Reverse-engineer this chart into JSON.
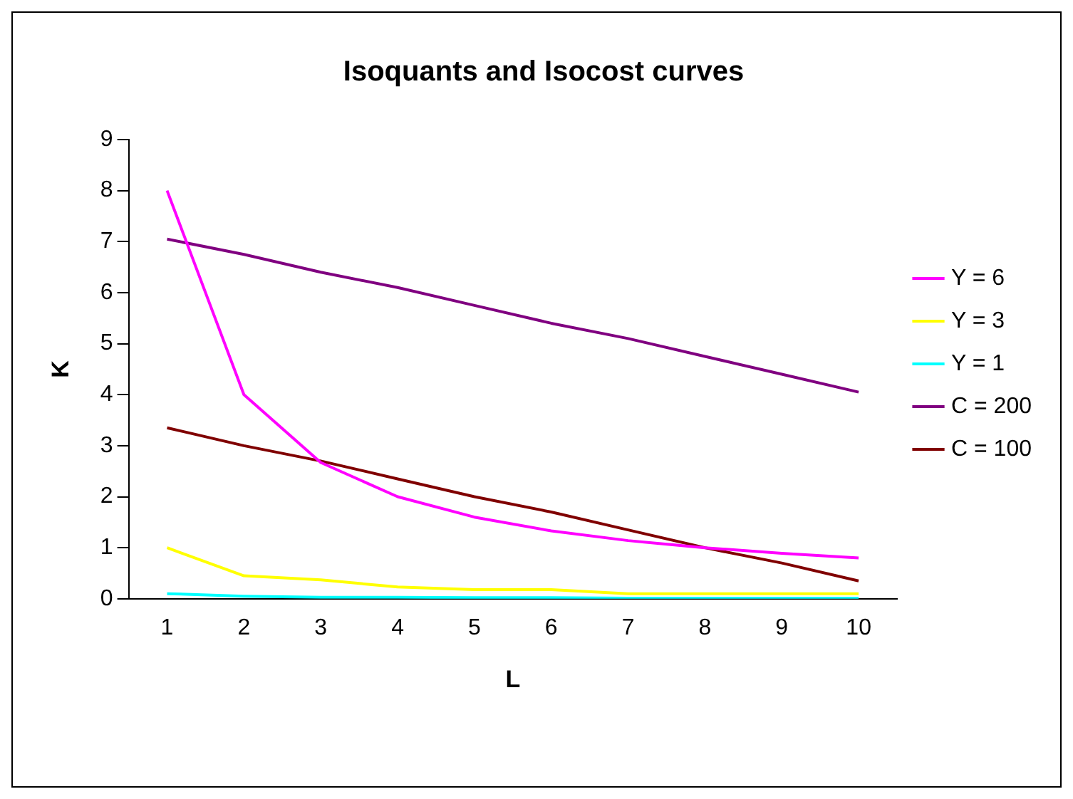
{
  "chart_data": {
    "type": "line",
    "title": "Isoquants and Isocost curves",
    "xlabel": "L",
    "ylabel": "K",
    "categories": [
      "1",
      "2",
      "3",
      "4",
      "5",
      "6",
      "7",
      "8",
      "9",
      "10"
    ],
    "series": [
      {
        "name": "Y = 6",
        "color": "#ff00ff",
        "values": [
          8,
          4,
          2.67,
          2,
          1.6,
          1.33,
          1.14,
          1,
          0.89,
          0.8
        ]
      },
      {
        "name": "Y = 3",
        "color": "#ffff00",
        "values": [
          1,
          0.45,
          0.37,
          0.23,
          0.18,
          0.18,
          0.1,
          0.1,
          0.1,
          0.1
        ]
      },
      {
        "name": "Y = 1",
        "color": "#00ffff",
        "values": [
          0.1,
          0.05,
          0.03,
          0.03,
          0.02,
          0.02,
          0.01,
          0.01,
          0.01,
          0.01
        ]
      },
      {
        "name": "C = 200",
        "color": "#800080",
        "values": [
          7.05,
          6.75,
          6.4,
          6.1,
          5.75,
          5.4,
          5.1,
          4.75,
          4.4,
          4.05
        ]
      },
      {
        "name": "C = 100",
        "color": "#800000",
        "values": [
          3.35,
          3.0,
          2.7,
          2.35,
          2.0,
          1.7,
          1.35,
          1.0,
          0.7,
          0.35
        ]
      }
    ],
    "ylim": [
      0,
      9
    ],
    "yticks": [
      0,
      1,
      2,
      3,
      4,
      5,
      6,
      7,
      8,
      9
    ],
    "grid": false,
    "legend": "right",
    "marker": "none",
    "line_style": "solid"
  }
}
